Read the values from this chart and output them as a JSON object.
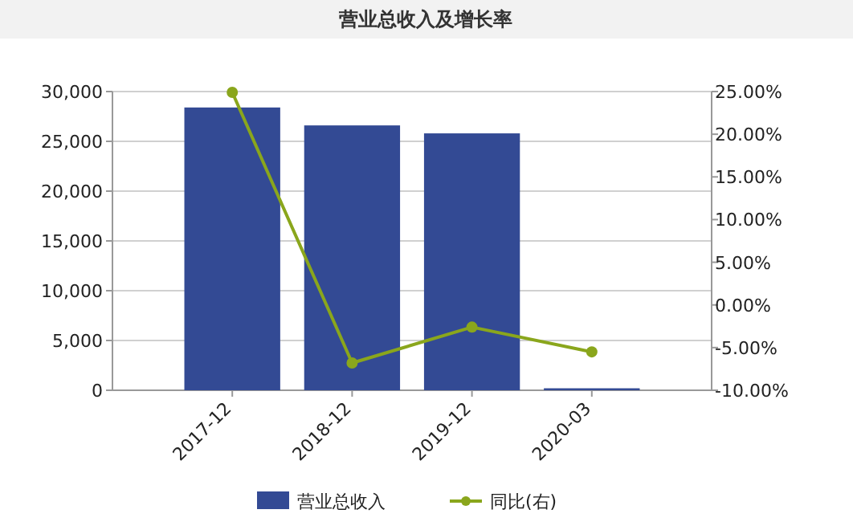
{
  "chart_data": {
    "type": "bar",
    "title": "营业总收入及增长率",
    "categories": [
      "2017-12",
      "2018-12",
      "2019-12",
      "2020-03"
    ],
    "series": [
      {
        "name": "营业总收入",
        "color": "#334a94",
        "values": [
          28400,
          26600,
          25800,
          200
        ]
      },
      {
        "name": "同比(右)",
        "type": "line",
        "axis": "y2",
        "color": "#8aa61c",
        "values": [
          24.9,
          -6.8,
          -2.6,
          -5.5
        ]
      }
    ],
    "ylim": [
      0,
      30000
    ],
    "yticks": [
      {
        "value": 0,
        "label": "0"
      },
      {
        "value": 5000,
        "label": "5,000"
      },
      {
        "value": 10000,
        "label": "10,000"
      },
      {
        "value": 15000,
        "label": "15,000"
      },
      {
        "value": 20000,
        "label": "20,000"
      },
      {
        "value": 25000,
        "label": "25,000"
      },
      {
        "value": 30000,
        "label": "30,000"
      }
    ],
    "y2lim": [
      -10,
      25
    ],
    "y2ticks": [
      {
        "value": -10,
        "label": "-10.00%"
      },
      {
        "value": -5,
        "label": "-5.00%"
      },
      {
        "value": 0,
        "label": "0.00%"
      },
      {
        "value": 5,
        "label": "5.00%"
      },
      {
        "value": 10,
        "label": "10.00%"
      },
      {
        "value": 15,
        "label": "15.00%"
      },
      {
        "value": 20,
        "label": "20.00%"
      },
      {
        "value": 25,
        "label": "25.00%"
      }
    ],
    "grid": "y",
    "legend": "bottom",
    "marker": "circle",
    "line_style": "solid"
  }
}
